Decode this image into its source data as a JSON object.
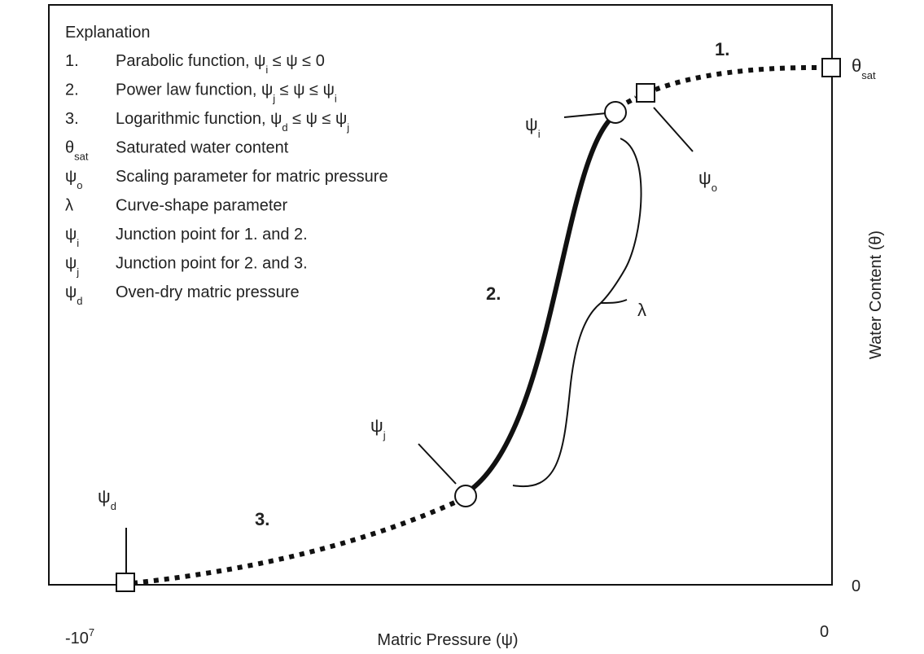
{
  "explanation": {
    "title": "Explanation",
    "items": [
      {
        "key": [
          "1."
        ],
        "text": [
          "Parabolic function, ψ",
          "i",
          " ≤ ψ ≤ 0"
        ]
      },
      {
        "key": [
          "2."
        ],
        "text": [
          "Power law function, ψ",
          "j",
          " ≤ ψ ≤ ψ",
          "i"
        ]
      },
      {
        "key": [
          "3."
        ],
        "text": [
          "Logarithmic function, ψ",
          "d",
          " ≤ ψ ≤ ψ",
          "j"
        ]
      },
      {
        "key": [
          "θ",
          "sat"
        ],
        "text": [
          "Saturated water content"
        ]
      },
      {
        "key": [
          "ψ",
          "o"
        ],
        "text": [
          "Scaling parameter for matric pressure"
        ]
      },
      {
        "key": [
          "λ"
        ],
        "text": [
          "Curve-shape parameter"
        ]
      },
      {
        "key": [
          "ψ",
          "i"
        ],
        "text": [
          "Junction point for 1. and 2."
        ]
      },
      {
        "key": [
          "ψ",
          "j"
        ],
        "text": [
          "Junction point for 2. and 3."
        ]
      },
      {
        "key": [
          "ψ",
          "d"
        ],
        "text": [
          "Oven-dry matric pressure"
        ]
      }
    ]
  },
  "labels": {
    "segment_1": "1.",
    "segment_2": "2.",
    "segment_3": "3.",
    "psi_i": [
      "ψ",
      "i"
    ],
    "psi_o": [
      "ψ",
      "o"
    ],
    "psi_j": [
      "ψ",
      "j"
    ],
    "psi_d": [
      "ψ",
      "d"
    ],
    "theta_sat": [
      "θ",
      "sat"
    ],
    "lambda": "λ"
  },
  "axes": {
    "y_label": "Water Content (θ)",
    "y_zero": "0",
    "x_label": "Matric Pressure (ψ)",
    "x_zero": "0",
    "x_min": [
      "-10",
      "7"
    ]
  }
}
